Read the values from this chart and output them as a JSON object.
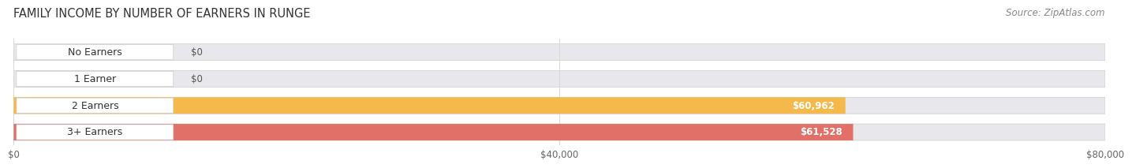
{
  "title": "FAMILY INCOME BY NUMBER OF EARNERS IN RUNGE",
  "source": "Source: ZipAtlas.com",
  "categories": [
    "No Earners",
    "1 Earner",
    "2 Earners",
    "3+ Earners"
  ],
  "values": [
    0,
    0,
    60962,
    61528
  ],
  "bar_colors": [
    "#aab0d8",
    "#f0a8c0",
    "#f5b84a",
    "#e07068"
  ],
  "bg_bar_color": "#e8e8ec",
  "background_color": "#ffffff",
  "xlim": [
    0,
    80000
  ],
  "xticks": [
    0,
    40000,
    80000
  ],
  "xtick_labels": [
    "$0",
    "$40,000",
    "$80,000"
  ],
  "bar_height": 0.62,
  "title_fontsize": 10.5,
  "source_fontsize": 8.5,
  "tick_fontsize": 8.5,
  "label_fontsize": 9,
  "value_fontsize": 8.5,
  "grid_color": "#d8d8d8"
}
